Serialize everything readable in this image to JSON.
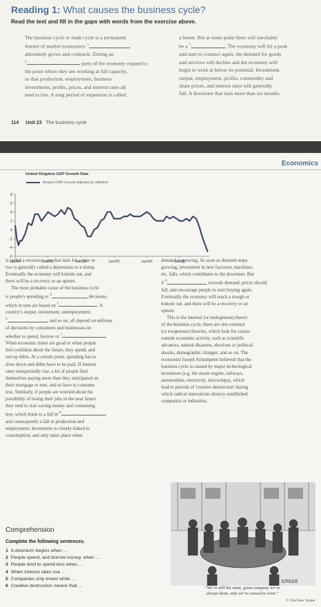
{
  "reading": {
    "title_prefix": "Reading 1:",
    "title_text": " What causes the business cycle?",
    "instruction": "Read the text and fill in the gaps with words from the exercise above.",
    "col1": {
      "l1": "The business cycle or trade cycle is a permanent",
      "l2a": "feature of market economies:",
      "gap1": "1",
      "l3": "alternately grows and contracts. During an",
      "gap2": "2",
      "l4b": ", parts of the economy expand to",
      "l5": "the point where they are working at full capacity,",
      "l6": "so that production, employment, business",
      "l7": "investments, profits, prices, and interest rates all",
      "l8": "tend to rise. A long period of expansion is called"
    },
    "col2": {
      "l1": "a boom. But at some point there will inevitably",
      "l2a": "be a",
      "gap3": "3",
      "l2b": ". The economy will hit a peak",
      "l3": "and start to contract again, the demand for goods",
      "l4": "and services will decline and the economy will",
      "l5": "begin to work at below its potential. Investment,",
      "l6": "output, employment, profits, commodity and",
      "l7": "share prices, and interest rates will generally",
      "l8": "fall. A downturn that lasts more than six months"
    },
    "footer": {
      "page": "114",
      "unit": "Unit 23",
      "unit_title": "The business cycle"
    }
  },
  "page2": {
    "section": "Economics",
    "chart_title": "United Kingdom GDP Growth Rate",
    "legend": "Annual GDP Growth Adjusted by inflation",
    "left_col": [
      "is called a recession; one that lasts for a year or",
      "two is generally called a depression or a slump.",
      "Eventually the economy will bottom out, and",
      "there will be a recovery or an upturn."
    ],
    "left_para2": {
      "a": "The most probable cause of the business cycle",
      "b1": "is people's spending or",
      "gap4": "4",
      "b2": "decisions,",
      "c1": "which in turn are based on",
      "gap5": "5",
      "c2": ". A",
      "d": "country's output, investment, unemployment,",
      "gap6": "6",
      "e2": ", and so on, all depend on millions",
      "f": "of decisions by consumers and businesses on",
      "g1": "whether to spend, borrow or",
      "gap7": "7"
    },
    "left_rest": [
      "When economic times are good or when people",
      "feel confident about the future, they spend, and",
      "run up debts. At a certain point, spending has to",
      "slow down and debts have to be paid. If interest",
      "rates unexpectedly rise, a lot of people find",
      "themselves paying more than they anticipated on",
      "their mortgage or rent, and so have to consume",
      "less. Similarly, if people are worried about the",
      "possibility of losing their jobs in the near future",
      "they tend to start saving money and consuming"
    ],
    "left_tail": {
      "a1": "less, which leads to a fall in",
      "gap8": "8",
      "b": "and consequently a fall in production and",
      "c": "employment. Investment is closely linked to",
      "d": "consumption, and only takes place when"
    },
    "right_col1": [
      "demand is growing. As soon as demand stops",
      "growing, investment in new factories, machines,",
      "etc. falls, which contributes to the downturn. But"
    ],
    "right_if": {
      "a": "if",
      "gap9": "9",
      "b": "exceeds demand, prices should"
    },
    "right_col2": [
      "fall, and encourage people to start buying again.",
      "Eventually the economy will reach a trough or",
      "bottom out, and there will be a recovery or an",
      "upturn."
    ],
    "right_col3": [
      "This is the internal (or endogenous) theory",
      "of the business cycle; there are also external",
      "(or exogenous) theories, which look for causes",
      "outside economic activity, such as scientific",
      "advances, natural disasters, elections or political",
      "shocks, demographic changes, and so on. The",
      "economist Joseph Schumpeter believed that the",
      "business cycle is caused by major technological",
      "inventions (e.g. the steam engine, railways,",
      "automobiles, electricity, microchips), which",
      "lead to periods of 'creative destruction' during",
      "which radical innovations destroy established",
      "companies or industries."
    ],
    "comprehension": {
      "heading": "Comprehension",
      "instruction": "Complete the following sentences.",
      "items": [
        {
          "num": "1",
          "text": "A downturn begins when ..."
        },
        {
          "num": "2",
          "text": "People spend, and borrow money, when ..."
        },
        {
          "num": "3",
          "text": "People tend to spend less when ..."
        },
        {
          "num": "4",
          "text": "When interest rates rise ..."
        },
        {
          "num": "5",
          "text": "Companies only invest while ..."
        },
        {
          "num": "6",
          "text": "Creative destruction means that ..."
        }
      ]
    },
    "cartoon": {
      "signature": "S/PAS/E",
      "caption_l1": "“We’re still the same, great company we’ve",
      "caption_l2": "always been, only we’ve ceased to exist.”",
      "credit": "© The New Yorker"
    }
  },
  "chart_data": {
    "type": "line",
    "title": "United Kingdom GDP Growth Rate",
    "series": [
      {
        "name": "Annual GDP Growth Adjusted by inflation",
        "x": [
          1980.0,
          1980.25,
          1980.5,
          1980.75,
          1981.0,
          1981.5,
          1982.0,
          1982.5,
          1983.0,
          1983.5,
          1984.0,
          1984.5,
          1985.0,
          1985.5,
          1986.0,
          1986.5,
          1987.0,
          1987.5,
          1988.0,
          1988.5,
          1989.0,
          1989.5,
          1990.0,
          1990.5,
          1991.0,
          1991.5,
          1992.0,
          1992.5,
          1993.0,
          1993.5,
          1994.0,
          1994.5,
          1995.0,
          1995.5,
          1996.0,
          1996.5,
          1997.0,
          1997.5,
          1998.0,
          1998.5,
          1999.0,
          1999.5,
          2000.0,
          2000.5,
          2001.0,
          2001.5,
          2002.0,
          2002.5,
          2003.0,
          2003.5,
          2004.0,
          2004.5,
          2005.0,
          2005.5,
          2006.0,
          2006.5,
          2007.0,
          2007.5,
          2008.0,
          2008.5,
          2009.0,
          2009.25
        ],
        "values": [
          1.0,
          -2.0,
          -3.5,
          -2.5,
          -2.5,
          -1.0,
          1.5,
          1.0,
          3.5,
          3.5,
          2.0,
          3.0,
          4.0,
          3.5,
          3.0,
          3.5,
          4.5,
          3.5,
          5.0,
          4.5,
          2.5,
          2.0,
          1.0,
          0.5,
          -1.5,
          -1.5,
          0.0,
          0.5,
          2.0,
          2.5,
          4.0,
          4.0,
          2.5,
          2.5,
          2.5,
          3.0,
          3.0,
          3.5,
          3.0,
          3.0,
          3.0,
          3.5,
          4.0,
          3.5,
          2.5,
          2.0,
          2.0,
          2.0,
          3.0,
          2.5,
          3.0,
          2.5,
          2.0,
          2.0,
          2.5,
          2.0,
          3.0,
          2.5,
          0.5,
          -2.0,
          -4.0,
          -5.0
        ]
      }
    ],
    "xticks": [
      "Jan/80",
      "Jan/85",
      "Jan/90",
      "Jan/95",
      "Jan/00",
      "Jan/05"
    ],
    "yticks": [
      8,
      6,
      4,
      2,
      0,
      -2,
      -4,
      -6
    ],
    "ylim": [
      -6,
      8
    ],
    "xlim": [
      1980,
      2009.5
    ],
    "grid": false,
    "legend": "top-left",
    "color": "#3d4c66"
  }
}
